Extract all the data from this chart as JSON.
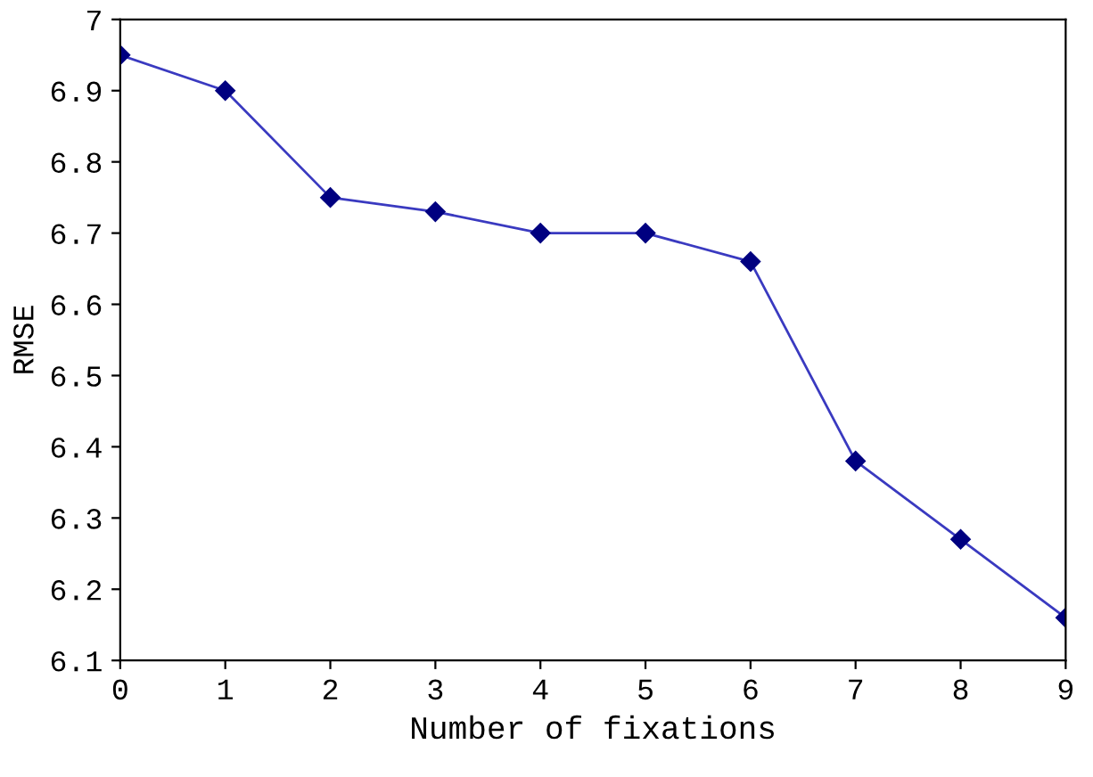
{
  "chart_data": {
    "type": "line",
    "xlabel": "Number of fixations",
    "ylabel": "RMSE",
    "x": [
      0,
      1,
      2,
      3,
      4,
      5,
      6,
      7,
      8,
      9
    ],
    "series": [
      {
        "color": "#000080",
        "values": [
          6.95,
          6.9,
          6.75,
          6.73,
          6.7,
          6.7,
          6.66,
          6.38,
          6.27,
          6.16
        ]
      }
    ],
    "xlim": [
      0,
      9
    ],
    "xticks": [
      0,
      1,
      2,
      3,
      4,
      5,
      6,
      7,
      8,
      9
    ],
    "ylim": [
      6.1,
      7
    ],
    "yticks": [
      6.1,
      6.2,
      6.3,
      6.4,
      6.5,
      6.6,
      6.7,
      6.8,
      6.9,
      7
    ],
    "marker": "diamond",
    "line_style": "solid",
    "grid": false,
    "legend": false
  }
}
